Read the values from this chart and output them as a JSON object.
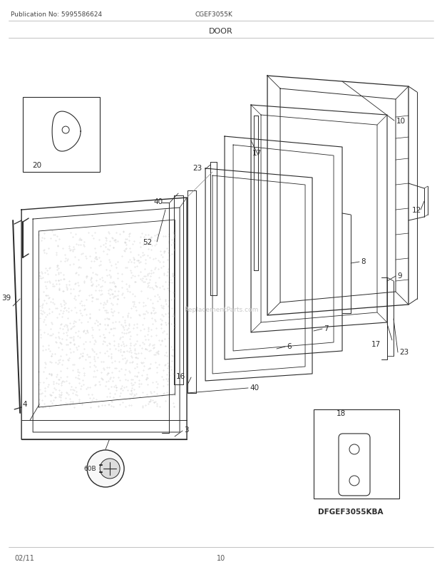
{
  "title": "DOOR",
  "pub_no": "Publication No: 5995586624",
  "model": "CGEF3055K",
  "footer_left": "02/11",
  "footer_center": "10",
  "bg_color": "#ffffff",
  "dc": "#2a2a2a",
  "watermark": "ReplacementParts.com",
  "sub_model": "DFGEF3055KBA"
}
